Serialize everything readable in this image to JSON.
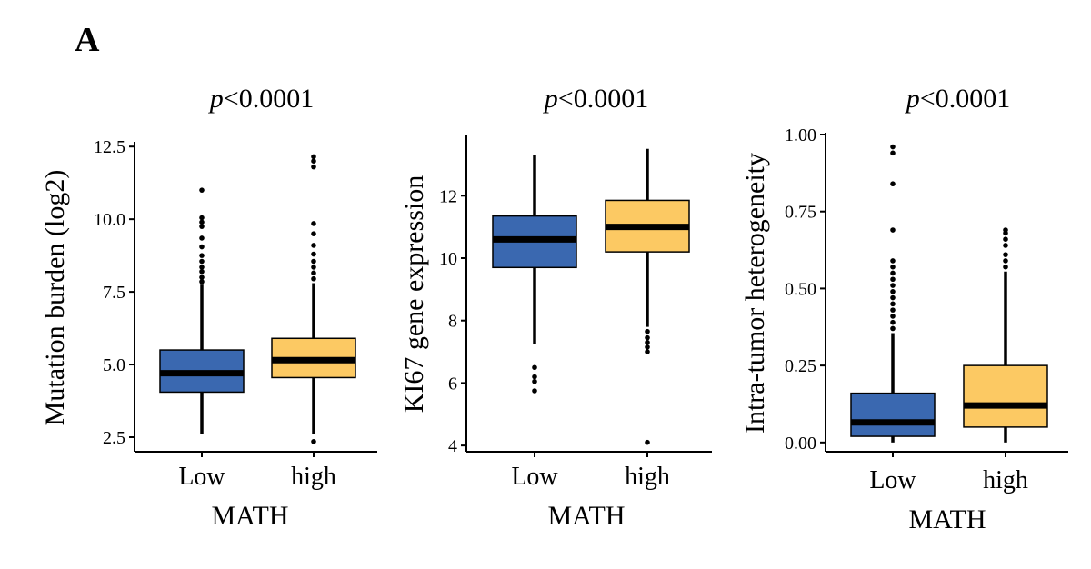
{
  "panel_label": "A",
  "colors": {
    "low": "#3a68b0",
    "high": "#fcc963",
    "line": "#000000"
  },
  "chart_data": [
    {
      "type": "box",
      "title_p": "p",
      "title_rest": "<0.0001",
      "xlabel": "MATH",
      "ylabel": "Mutation burden (log2)",
      "categories": [
        "Low",
        "high"
      ],
      "ylim": [
        2.0,
        12.6
      ],
      "yticks": [
        2.5,
        5.0,
        7.5,
        10.0,
        12.5
      ],
      "ytick_labels": [
        "2.5",
        "5.0",
        "7.5",
        "10.0",
        "12.5"
      ],
      "boxes": [
        {
          "name": "Low",
          "q1": 4.05,
          "median": 4.7,
          "q3": 5.5,
          "whisker_low": 2.6,
          "whisker_high": 7.75,
          "outliers": [
            7.85,
            8.0,
            8.2,
            8.35,
            8.55,
            8.75,
            9.05,
            9.35,
            9.75,
            9.9,
            10.05,
            11.0
          ]
        },
        {
          "name": "high",
          "q1": 4.55,
          "median": 5.15,
          "q3": 5.9,
          "whisker_low": 2.6,
          "whisker_high": 7.8,
          "outliers": [
            2.35,
            7.95,
            8.15,
            8.35,
            8.55,
            8.8,
            9.1,
            9.5,
            9.85,
            11.8,
            12.0,
            12.15
          ]
        }
      ]
    },
    {
      "type": "box",
      "title_p": "p",
      "title_rest": "<0.0001",
      "xlabel": "MATH",
      "ylabel": "KI67 gene expression",
      "categories": [
        "Low",
        "high"
      ],
      "ylim": [
        3.8,
        13.9
      ],
      "yticks": [
        4,
        6,
        8,
        10,
        12
      ],
      "ytick_labels": [
        "4",
        "6",
        "8",
        "10",
        "12"
      ],
      "boxes": [
        {
          "name": "Low",
          "q1": 9.7,
          "median": 10.6,
          "q3": 11.35,
          "whisker_low": 7.25,
          "whisker_high": 13.3,
          "outliers": [
            5.75,
            6.05,
            6.2,
            6.5
          ]
        },
        {
          "name": "high",
          "q1": 10.2,
          "median": 11.0,
          "q3": 11.85,
          "whisker_low": 7.8,
          "whisker_high": 13.5,
          "outliers": [
            4.1,
            7.0,
            7.15,
            7.3,
            7.45,
            7.65
          ]
        }
      ]
    },
    {
      "type": "box",
      "title_p": "p",
      "title_rest": "<0.0001",
      "xlabel": "MATH",
      "ylabel": "Intra-tumor heterogeneity",
      "categories": [
        "Low",
        "high"
      ],
      "ylim": [
        -0.03,
        1.0
      ],
      "yticks": [
        0.0,
        0.25,
        0.5,
        0.75,
        1.0
      ],
      "ytick_labels": [
        "0.00",
        "0.25",
        "0.50",
        "0.75",
        "1.00"
      ],
      "boxes": [
        {
          "name": "Low",
          "q1": 0.02,
          "median": 0.065,
          "q3": 0.16,
          "whisker_low": 0.0,
          "whisker_high": 0.355,
          "outliers": [
            0.37,
            0.39,
            0.41,
            0.43,
            0.45,
            0.47,
            0.49,
            0.51,
            0.53,
            0.55,
            0.57,
            0.59,
            0.69,
            0.84,
            0.94,
            0.96
          ]
        },
        {
          "name": "high",
          "q1": 0.05,
          "median": 0.12,
          "q3": 0.25,
          "whisker_low": 0.0,
          "whisker_high": 0.555,
          "outliers": [
            0.57,
            0.59,
            0.61,
            0.64,
            0.66,
            0.68,
            0.69
          ]
        }
      ]
    }
  ]
}
